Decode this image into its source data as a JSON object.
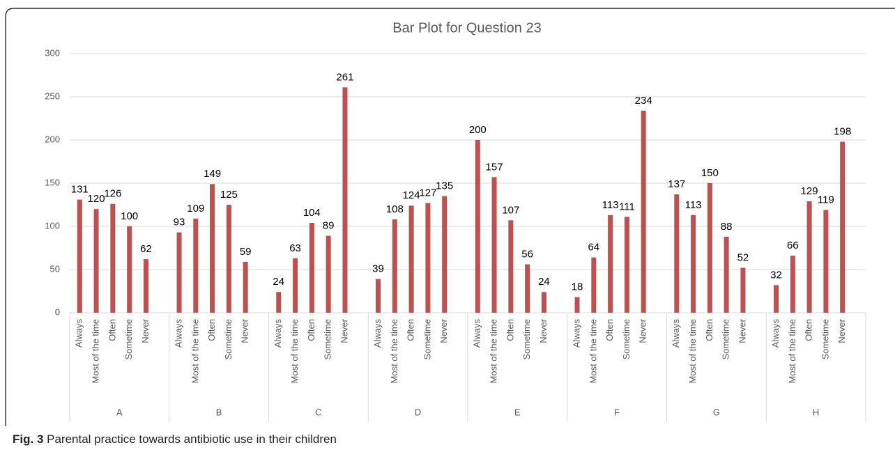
{
  "chart_data": {
    "type": "bar",
    "title": "Bar Plot for Question 23",
    "groups": [
      "A",
      "B",
      "C",
      "D",
      "E",
      "F",
      "G",
      "H"
    ],
    "categories": [
      "Always",
      "Most of the time",
      "Often",
      "Sometime",
      "Never",
      "Always",
      "Most of the time",
      "Often",
      "Sometime",
      "Never",
      "Always",
      "Most of the time",
      "Often",
      "Sometime",
      "Never",
      "Always",
      "Most of the time",
      "Often",
      "Sometime",
      "Never",
      "Always",
      "Most of the time",
      "Often",
      "Sometime",
      "Never",
      "Always",
      "Most of the time",
      "Often",
      "Sometime",
      "Never",
      "Always",
      "Most of the time",
      "Often",
      "Sometime",
      "Never",
      "Always",
      "Most of the time",
      "Often",
      "Sometime",
      "Never"
    ],
    "values": [
      131,
      120,
      126,
      100,
      62,
      93,
      109,
      149,
      125,
      59,
      24,
      63,
      104,
      89,
      261,
      39,
      108,
      124,
      127,
      135,
      200,
      157,
      107,
      56,
      24,
      18,
      64,
      113,
      111,
      234,
      137,
      113,
      150,
      88,
      52,
      32,
      66,
      129,
      119,
      198
    ],
    "color": "#c0504d",
    "ylim": [
      0,
      300
    ],
    "yticks": [
      0,
      50,
      100,
      150,
      200,
      250,
      300
    ],
    "grid": true
  },
  "caption": {
    "label": "Fig. 3",
    "text": "Parental practice towards antibiotic use in their children"
  }
}
